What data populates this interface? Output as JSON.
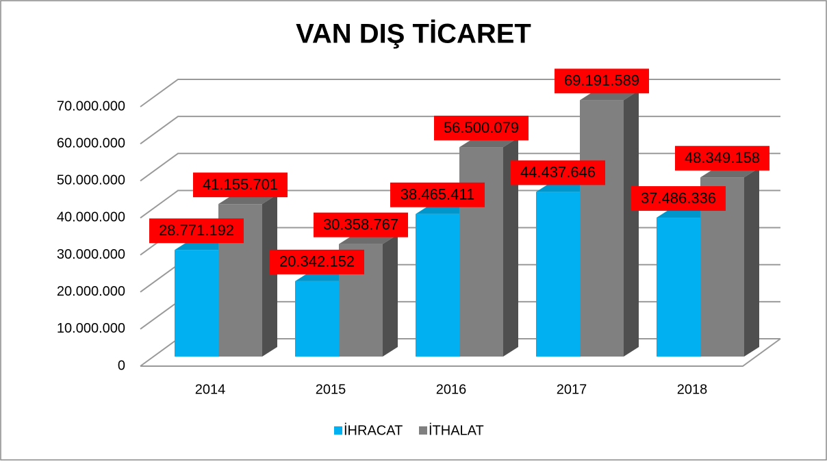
{
  "chart_data": {
    "type": "bar3d",
    "title": "VAN DIŞ TİCARET",
    "categories": [
      "2014",
      "2015",
      "2016",
      "2017",
      "2018"
    ],
    "series": [
      {
        "name": "İHRACAT",
        "color": "#00b0f0",
        "values": [
          28771192,
          20342152,
          38465411,
          44437646,
          37486336
        ],
        "value_labels": [
          "28.771.192",
          "20.342.152",
          "38.465.411",
          "44.437.646",
          "37.486.336"
        ]
      },
      {
        "name": "İTHALAT",
        "color": "#808080",
        "values": [
          41155701,
          30358767,
          56500079,
          69191589,
          48349158
        ],
        "value_labels": [
          "41.155.701",
          "30.358.767",
          "56.500.079",
          "69.191.589",
          "48.349.158"
        ]
      }
    ],
    "ylim": [
      0,
      70000000
    ],
    "yticks": [
      0,
      {
        "value": 10000000,
        "label": "10.000.000"
      },
      {
        "value": 20000000,
        "label": "20.000.000"
      },
      {
        "value": 30000000,
        "label": "30.000.000"
      },
      {
        "value": 40000000,
        "label": "40.000.000"
      },
      {
        "value": 50000000,
        "label": "50.000.000"
      },
      {
        "value": 60000000,
        "label": "60.000.000"
      },
      {
        "value": 70000000,
        "label": "70.000.000"
      }
    ],
    "grid": true,
    "data_label_color": "#ff0000",
    "legend": "bottom"
  }
}
